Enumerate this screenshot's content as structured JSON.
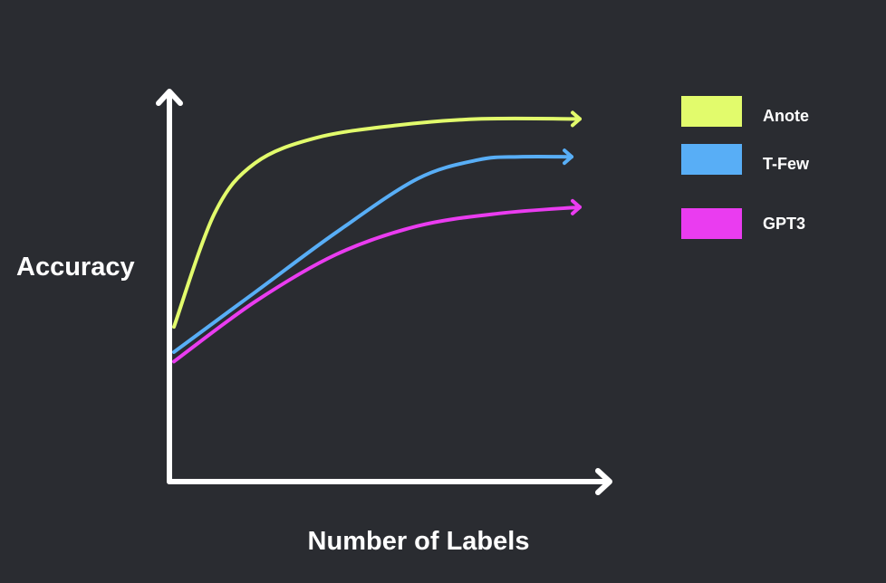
{
  "chart_data": {
    "type": "line",
    "title": "",
    "xlabel": "Number of Labels",
    "ylabel": "Accuracy",
    "xlim": [
      0,
      100
    ],
    "ylim": [
      0,
      100
    ],
    "grid": false,
    "legend_position": "top-right",
    "series": [
      {
        "name": "Anote",
        "color": "#e2fb6c",
        "x": [
          0,
          10,
          20,
          35,
          55,
          75,
          100
        ],
        "y": [
          29,
          65,
          81,
          89,
          93,
          95,
          95
        ]
      },
      {
        "name": "T-Few",
        "color": "#58aef6",
        "x": [
          0,
          20,
          40,
          60,
          75,
          85,
          98
        ],
        "y": [
          21,
          40,
          59,
          76,
          82,
          83,
          83
        ]
      },
      {
        "name": "GPT3",
        "color": "#ea3cf0",
        "x": [
          0,
          20,
          40,
          60,
          80,
          100
        ],
        "y": [
          18,
          37,
          52,
          61,
          65,
          67
        ]
      }
    ]
  }
}
